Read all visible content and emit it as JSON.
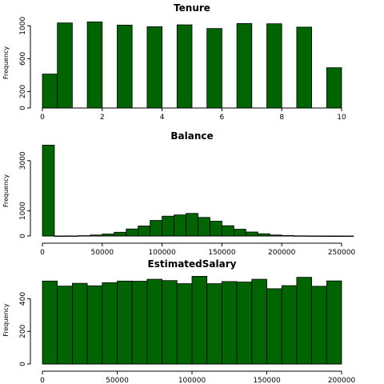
{
  "style": {
    "bar_color": "#006400",
    "edge_color": "#000000"
  },
  "chart_data": [
    {
      "type": "bar",
      "title": "Tenure",
      "ylabel": "Frequency",
      "xlabel": "",
      "xlim": [
        0,
        10
      ],
      "ylim": [
        0,
        1100
      ],
      "xticks": [
        0,
        2,
        4,
        6,
        8,
        10
      ],
      "yticks": [
        0,
        200,
        600,
        1000
      ],
      "bins": [
        {
          "x0": 0.0,
          "x1": 0.5,
          "value": 413
        },
        {
          "x0": 0.5,
          "x1": 1.0,
          "value": 1035
        },
        {
          "x0": 1.5,
          "x1": 2.0,
          "value": 1048
        },
        {
          "x0": 2.5,
          "x1": 3.0,
          "value": 1009
        },
        {
          "x0": 3.5,
          "x1": 4.0,
          "value": 989
        },
        {
          "x0": 4.5,
          "x1": 5.0,
          "value": 1012
        },
        {
          "x0": 5.5,
          "x1": 6.0,
          "value": 967
        },
        {
          "x0": 6.5,
          "x1": 7.0,
          "value": 1028
        },
        {
          "x0": 7.5,
          "x1": 8.0,
          "value": 1025
        },
        {
          "x0": 8.5,
          "x1": 9.0,
          "value": 984
        },
        {
          "x0": 9.5,
          "x1": 10.0,
          "value": 490
        }
      ]
    },
    {
      "type": "bar",
      "title": "Balance",
      "ylabel": "Frequency",
      "xlabel": "",
      "xlim": [
        0,
        250000
      ],
      "ylim": [
        0,
        3600
      ],
      "xticks": [
        0,
        50000,
        100000,
        150000,
        200000,
        250000
      ],
      "yticks": [
        0,
        1000,
        3000
      ],
      "bins": [
        {
          "x0": 0,
          "x1": 10000,
          "value": 3620
        },
        {
          "x0": 10000,
          "x1": 20000,
          "value": 2
        },
        {
          "x0": 20000,
          "x1": 30000,
          "value": 5
        },
        {
          "x0": 30000,
          "x1": 40000,
          "value": 15
        },
        {
          "x0": 40000,
          "x1": 50000,
          "value": 40
        },
        {
          "x0": 50000,
          "x1": 60000,
          "value": 80
        },
        {
          "x0": 60000,
          "x1": 70000,
          "value": 150
        },
        {
          "x0": 70000,
          "x1": 80000,
          "value": 280
        },
        {
          "x0": 80000,
          "x1": 90000,
          "value": 400
        },
        {
          "x0": 90000,
          "x1": 100000,
          "value": 620
        },
        {
          "x0": 100000,
          "x1": 110000,
          "value": 790
        },
        {
          "x0": 110000,
          "x1": 120000,
          "value": 840
        },
        {
          "x0": 120000,
          "x1": 130000,
          "value": 900
        },
        {
          "x0": 130000,
          "x1": 140000,
          "value": 740
        },
        {
          "x0": 140000,
          "x1": 150000,
          "value": 590
        },
        {
          "x0": 150000,
          "x1": 160000,
          "value": 410
        },
        {
          "x0": 160000,
          "x1": 170000,
          "value": 270
        },
        {
          "x0": 170000,
          "x1": 180000,
          "value": 160
        },
        {
          "x0": 180000,
          "x1": 190000,
          "value": 90
        },
        {
          "x0": 190000,
          "x1": 200000,
          "value": 40
        },
        {
          "x0": 200000,
          "x1": 210000,
          "value": 20
        },
        {
          "x0": 210000,
          "x1": 220000,
          "value": 8
        },
        {
          "x0": 220000,
          "x1": 230000,
          "value": 4
        },
        {
          "x0": 230000,
          "x1": 240000,
          "value": 2
        },
        {
          "x0": 240000,
          "x1": 250000,
          "value": 1
        },
        {
          "x0": 250000,
          "x1": 260000,
          "value": 1
        }
      ]
    },
    {
      "type": "bar",
      "title": "EstimatedSalary",
      "ylabel": "Frequency",
      "xlabel": "",
      "xlim": [
        0,
        200000
      ],
      "ylim": [
        0,
        540
      ],
      "xticks": [
        0,
        50000,
        100000,
        150000,
        200000
      ],
      "yticks": [
        0,
        200,
        400
      ],
      "bins": [
        {
          "x0": 0,
          "x1": 10000,
          "value": 509
        },
        {
          "x0": 10000,
          "x1": 20000,
          "value": 478
        },
        {
          "x0": 20000,
          "x1": 30000,
          "value": 495
        },
        {
          "x0": 30000,
          "x1": 40000,
          "value": 480
        },
        {
          "x0": 40000,
          "x1": 50000,
          "value": 499
        },
        {
          "x0": 50000,
          "x1": 60000,
          "value": 509
        },
        {
          "x0": 60000,
          "x1": 70000,
          "value": 508
        },
        {
          "x0": 70000,
          "x1": 80000,
          "value": 520
        },
        {
          "x0": 80000,
          "x1": 90000,
          "value": 512
        },
        {
          "x0": 90000,
          "x1": 100000,
          "value": 493
        },
        {
          "x0": 100000,
          "x1": 110000,
          "value": 538
        },
        {
          "x0": 110000,
          "x1": 120000,
          "value": 493
        },
        {
          "x0": 120000,
          "x1": 130000,
          "value": 506
        },
        {
          "x0": 130000,
          "x1": 140000,
          "value": 503
        },
        {
          "x0": 140000,
          "x1": 150000,
          "value": 520
        },
        {
          "x0": 150000,
          "x1": 160000,
          "value": 462
        },
        {
          "x0": 160000,
          "x1": 170000,
          "value": 481
        },
        {
          "x0": 170000,
          "x1": 180000,
          "value": 532
        },
        {
          "x0": 180000,
          "x1": 190000,
          "value": 477
        },
        {
          "x0": 190000,
          "x1": 200000,
          "value": 510
        }
      ]
    }
  ]
}
